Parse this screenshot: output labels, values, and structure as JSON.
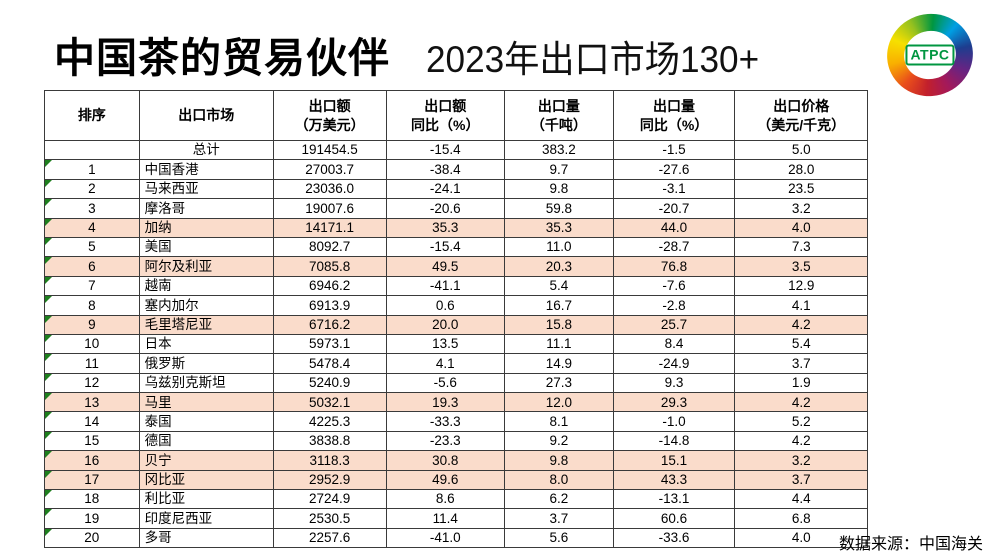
{
  "title": {
    "main": "中国茶的贸易伙伴",
    "sub": "2023年出口市场130+"
  },
  "logo": {
    "text": "ATPC"
  },
  "footer": {
    "source": "数据来源：中国海关"
  },
  "colors": {
    "row_highlight": "#FADCCB",
    "flag_triangle_green": "#1E7F1E",
    "logo_text_green": "#009640",
    "logo_swirl": [
      "#C2202C",
      "#E94E1B",
      "#F9B000",
      "#95C11F",
      "#009640",
      "#009FE3",
      "#1D3D8F",
      "#662483"
    ],
    "table_border": "#3A3A3A"
  },
  "table": {
    "headers": [
      {
        "line1": "排序",
        "line2": ""
      },
      {
        "line1": "出口市场",
        "line2": ""
      },
      {
        "line1": "出口额",
        "line2": "（万美元）"
      },
      {
        "line1": "出口额",
        "line2": "同比（%）"
      },
      {
        "line1": "出口量",
        "line2": "（千吨）"
      },
      {
        "line1": "出口量",
        "line2": "同比（%）"
      },
      {
        "line1": "出口价格",
        "line2": "（美元/千克）"
      }
    ],
    "rows": [
      {
        "rank": "",
        "market": "总计",
        "value": "191454.5",
        "value_yoy": "-15.4",
        "volume": "383.2",
        "volume_yoy": "-1.5",
        "price": "5.0",
        "highlight": false,
        "flag": false,
        "market_center": true
      },
      {
        "rank": "1",
        "market": "中国香港",
        "value": "27003.7",
        "value_yoy": "-38.4",
        "volume": "9.7",
        "volume_yoy": "-27.6",
        "price": "28.0",
        "highlight": false,
        "flag": true
      },
      {
        "rank": "2",
        "market": "马来西亚",
        "value": "23036.0",
        "value_yoy": "-24.1",
        "volume": "9.8",
        "volume_yoy": "-3.1",
        "price": "23.5",
        "highlight": false,
        "flag": true
      },
      {
        "rank": "3",
        "market": "摩洛哥",
        "value": "19007.6",
        "value_yoy": "-20.6",
        "volume": "59.8",
        "volume_yoy": "-20.7",
        "price": "3.2",
        "highlight": false,
        "flag": true
      },
      {
        "rank": "4",
        "market": "加纳",
        "value": "14171.1",
        "value_yoy": "35.3",
        "volume": "35.3",
        "volume_yoy": "44.0",
        "price": "4.0",
        "highlight": true,
        "flag": true
      },
      {
        "rank": "5",
        "market": "美国",
        "value": "8092.7",
        "value_yoy": "-15.4",
        "volume": "11.0",
        "volume_yoy": "-28.7",
        "price": "7.3",
        "highlight": false,
        "flag": true
      },
      {
        "rank": "6",
        "market": "阿尔及利亚",
        "value": "7085.8",
        "value_yoy": "49.5",
        "volume": "20.3",
        "volume_yoy": "76.8",
        "price": "3.5",
        "highlight": true,
        "flag": true
      },
      {
        "rank": "7",
        "market": "越南",
        "value": "6946.2",
        "value_yoy": "-41.1",
        "volume": "5.4",
        "volume_yoy": "-7.6",
        "price": "12.9",
        "highlight": false,
        "flag": true
      },
      {
        "rank": "8",
        "market": "塞内加尔",
        "value": "6913.9",
        "value_yoy": "0.6",
        "volume": "16.7",
        "volume_yoy": "-2.8",
        "price": "4.1",
        "highlight": false,
        "flag": true
      },
      {
        "rank": "9",
        "market": "毛里塔尼亚",
        "value": "6716.2",
        "value_yoy": "20.0",
        "volume": "15.8",
        "volume_yoy": "25.7",
        "price": "4.2",
        "highlight": true,
        "flag": true
      },
      {
        "rank": "10",
        "market": "日本",
        "value": "5973.1",
        "value_yoy": "13.5",
        "volume": "11.1",
        "volume_yoy": "8.4",
        "price": "5.4",
        "highlight": false,
        "flag": true
      },
      {
        "rank": "11",
        "market": "俄罗斯",
        "value": "5478.4",
        "value_yoy": "4.1",
        "volume": "14.9",
        "volume_yoy": "-24.9",
        "price": "3.7",
        "highlight": false,
        "flag": true
      },
      {
        "rank": "12",
        "market": "乌兹别克斯坦",
        "value": "5240.9",
        "value_yoy": "-5.6",
        "volume": "27.3",
        "volume_yoy": "9.3",
        "price": "1.9",
        "highlight": false,
        "flag": true
      },
      {
        "rank": "13",
        "market": "马里",
        "value": "5032.1",
        "value_yoy": "19.3",
        "volume": "12.0",
        "volume_yoy": "29.3",
        "price": "4.2",
        "highlight": true,
        "flag": true
      },
      {
        "rank": "14",
        "market": "泰国",
        "value": "4225.3",
        "value_yoy": "-33.3",
        "volume": "8.1",
        "volume_yoy": "-1.0",
        "price": "5.2",
        "highlight": false,
        "flag": true
      },
      {
        "rank": "15",
        "market": "德国",
        "value": "3838.8",
        "value_yoy": "-23.3",
        "volume": "9.2",
        "volume_yoy": "-14.8",
        "price": "4.2",
        "highlight": false,
        "flag": true
      },
      {
        "rank": "16",
        "market": "贝宁",
        "value": "3118.3",
        "value_yoy": "30.8",
        "volume": "9.8",
        "volume_yoy": "15.1",
        "price": "3.2",
        "highlight": true,
        "flag": true
      },
      {
        "rank": "17",
        "market": "冈比亚",
        "value": "2952.9",
        "value_yoy": "49.6",
        "volume": "8.0",
        "volume_yoy": "43.3",
        "price": "3.7",
        "highlight": true,
        "flag": true
      },
      {
        "rank": "18",
        "market": "利比亚",
        "value": "2724.9",
        "value_yoy": "8.6",
        "volume": "6.2",
        "volume_yoy": "-13.1",
        "price": "4.4",
        "highlight": false,
        "flag": true
      },
      {
        "rank": "19",
        "market": "印度尼西亚",
        "value": "2530.5",
        "value_yoy": "11.4",
        "volume": "3.7",
        "volume_yoy": "60.6",
        "price": "6.8",
        "highlight": false,
        "flag": true
      },
      {
        "rank": "20",
        "market": "多哥",
        "value": "2257.6",
        "value_yoy": "-41.0",
        "volume": "5.6",
        "volume_yoy": "-33.6",
        "price": "4.0",
        "highlight": false,
        "flag": true
      }
    ]
  }
}
